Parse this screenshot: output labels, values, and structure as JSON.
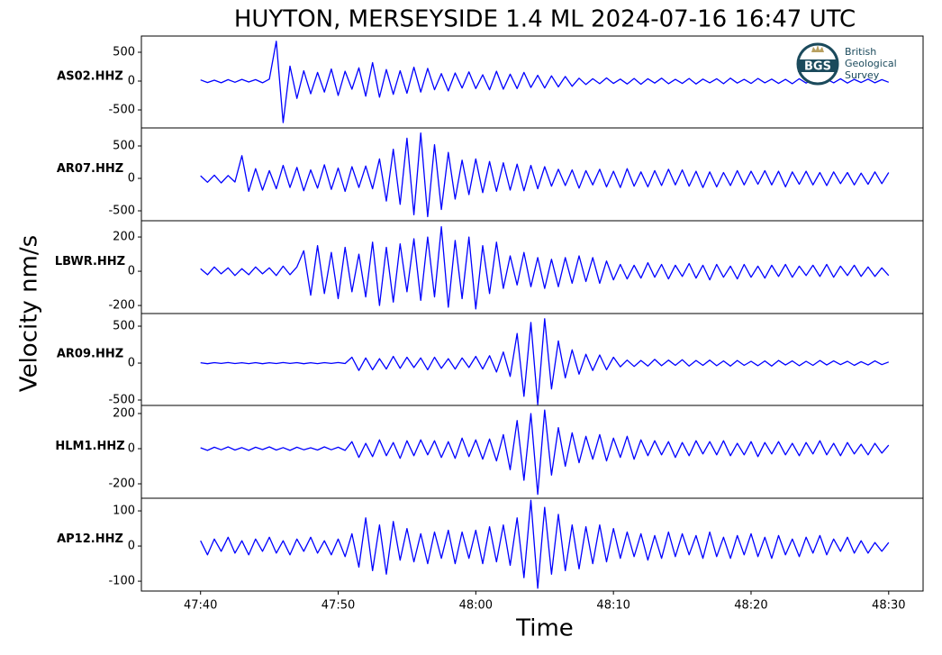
{
  "chart_data": {
    "type": "line",
    "title": "HUYTON, MERSEYSIDE 1.4 ML   2024-07-16 16:47 UTC",
    "xlabel": "Time",
    "ylabel": "Velocity nm/s",
    "logo": {
      "abbr": "BGS",
      "name": [
        "British",
        "Geological",
        "Survey"
      ]
    },
    "xlim": [
      35.7,
      92.5
    ],
    "xticks": [
      {
        "value": 40,
        "label": "47:40"
      },
      {
        "value": 50,
        "label": "47:50"
      },
      {
        "value": 60,
        "label": "48:00"
      },
      {
        "value": 70,
        "label": "48:10"
      },
      {
        "value": 80,
        "label": "48:20"
      },
      {
        "value": 90,
        "label": "48:30"
      }
    ],
    "x": [
      40,
      40.5,
      41,
      41.5,
      42,
      42.5,
      43,
      43.5,
      44,
      44.5,
      45,
      45.5,
      46,
      46.5,
      47,
      47.5,
      48,
      48.5,
      49,
      49.5,
      50,
      50.5,
      51,
      51.5,
      52,
      52.5,
      53,
      53.5,
      54,
      54.5,
      55,
      55.5,
      56,
      56.5,
      57,
      57.5,
      58,
      58.5,
      59,
      59.5,
      60,
      60.5,
      61,
      61.5,
      62,
      62.5,
      63,
      63.5,
      64,
      64.5,
      65,
      65.5,
      66,
      66.5,
      67,
      67.5,
      68,
      68.5,
      69,
      69.5,
      70,
      70.5,
      71,
      71.5,
      72,
      72.5,
      73,
      73.5,
      74,
      74.5,
      75,
      75.5,
      76,
      76.5,
      77,
      77.5,
      78,
      78.5,
      79,
      79.5,
      80,
      80.5,
      81,
      81.5,
      82,
      82.5,
      83,
      83.5,
      84,
      84.5,
      85,
      85.5,
      86,
      86.5,
      87,
      87.5,
      88,
      88.5,
      89,
      89.5,
      90
    ],
    "series": [
      {
        "name": "AS02.HHZ",
        "color": "#0000ff",
        "ylim": [
          -812,
          781
        ],
        "yticks": [
          -500,
          0,
          500
        ],
        "values": [
          20,
          -25,
          15,
          -30,
          25,
          -20,
          30,
          -15,
          25,
          -30,
          35,
          690,
          -720,
          260,
          -300,
          180,
          -220,
          150,
          -190,
          210,
          -250,
          170,
          -140,
          230,
          -260,
          320,
          -280,
          200,
          -230,
          180,
          -210,
          240,
          -190,
          220,
          -150,
          130,
          -170,
          140,
          -120,
          160,
          -130,
          110,
          -150,
          170,
          -140,
          120,
          -130,
          150,
          -110,
          100,
          -120,
          90,
          -100,
          80,
          -90,
          50,
          -60,
          40,
          -45,
          55,
          -40,
          35,
          -50,
          45,
          -55,
          40,
          -35,
          50,
          -45,
          30,
          -40,
          45,
          -50,
          35,
          -30,
          40,
          -45,
          50,
          -35,
          30,
          -40,
          45,
          -30,
          35,
          -40,
          30,
          -45,
          40,
          -35,
          30,
          -40,
          35,
          -30,
          40,
          -35,
          30,
          -25,
          35,
          -30,
          25,
          -20
        ]
      },
      {
        "name": "AR07.HHZ",
        "color": "#0000ff",
        "ylim": [
          -653,
          778
        ],
        "yticks": [
          -500,
          0,
          500
        ],
        "values": [
          40,
          -60,
          50,
          -70,
          45,
          -55,
          350,
          -200,
          150,
          -180,
          120,
          -160,
          200,
          -140,
          170,
          -190,
          130,
          -150,
          210,
          -170,
          160,
          -200,
          180,
          -140,
          190,
          -160,
          300,
          -350,
          450,
          -400,
          620,
          -560,
          700,
          -590,
          520,
          -480,
          400,
          -320,
          280,
          -250,
          300,
          -220,
          260,
          -200,
          240,
          -180,
          220,
          -190,
          200,
          -160,
          180,
          -120,
          140,
          -110,
          130,
          -150,
          120,
          -100,
          140,
          -130,
          110,
          -140,
          150,
          -120,
          100,
          -130,
          120,
          -110,
          140,
          -100,
          130,
          -120,
          110,
          -140,
          100,
          -130,
          90,
          -110,
          120,
          -100,
          110,
          -90,
          120,
          -100,
          110,
          -130,
          100,
          -90,
          110,
          -100,
          90,
          -110,
          100,
          -80,
          90,
          -100,
          80,
          -90,
          100,
          -80,
          90
        ]
      },
      {
        "name": "LBWR.HHZ",
        "color": "#0000ff",
        "ylim": [
          -247,
          295
        ],
        "yticks": [
          -200,
          0,
          200
        ],
        "values": [
          15,
          -20,
          25,
          -15,
          20,
          -25,
          15,
          -20,
          25,
          -15,
          20,
          -25,
          30,
          -20,
          25,
          120,
          -140,
          150,
          -130,
          110,
          -160,
          140,
          -120,
          100,
          -150,
          170,
          -200,
          140,
          -180,
          160,
          -120,
          190,
          -170,
          200,
          -150,
          260,
          -210,
          180,
          -160,
          200,
          -220,
          150,
          -130,
          170,
          -100,
          90,
          -80,
          110,
          -90,
          80,
          -100,
          70,
          -90,
          80,
          -70,
          90,
          -60,
          80,
          -70,
          60,
          -50,
          40,
          -45,
          35,
          -40,
          50,
          -35,
          40,
          -45,
          35,
          -30,
          45,
          -40,
          35,
          -50,
          40,
          -35,
          30,
          -45,
          40,
          -35,
          30,
          -40,
          35,
          -30,
          40,
          -35,
          30,
          -25,
          35,
          -30,
          40,
          -35,
          30,
          -25,
          35,
          -30,
          25,
          -30,
          20,
          -25
        ]
      },
      {
        "name": "AR09.HHZ",
        "color": "#0000ff",
        "ylim": [
          -573,
          671
        ],
        "yticks": [
          -500,
          0,
          500
        ],
        "values": [
          5,
          -8,
          6,
          -5,
          8,
          -6,
          5,
          -7,
          6,
          -8,
          5,
          -6,
          7,
          -5,
          6,
          -8,
          5,
          -7,
          6,
          -5,
          8,
          -6,
          80,
          -100,
          70,
          -90,
          60,
          -80,
          90,
          -70,
          80,
          -60,
          70,
          -90,
          80,
          -70,
          60,
          -80,
          70,
          -60,
          90,
          -80,
          100,
          -120,
          150,
          -180,
          400,
          -450,
          550,
          -560,
          600,
          -350,
          300,
          -200,
          180,
          -150,
          120,
          -100,
          110,
          -90,
          80,
          -50,
          40,
          -45,
          35,
          -40,
          50,
          -35,
          40,
          -30,
          45,
          -40,
          35,
          -30,
          40,
          -35,
          30,
          -40,
          35,
          -30,
          25,
          -35,
          30,
          -40,
          35,
          -25,
          30,
          -35,
          25,
          -30,
          35,
          -25,
          30,
          -20,
          25,
          -30,
          20,
          -25,
          30,
          -20,
          15
        ]
      },
      {
        "name": "HLM1.HHZ",
        "color": "#0000ff",
        "ylim": [
          -282,
          246
        ],
        "yticks": [
          -200,
          0,
          200
        ],
        "values": [
          5,
          -10,
          8,
          -6,
          10,
          -8,
          6,
          -10,
          8,
          -5,
          10,
          -8,
          6,
          -10,
          8,
          -6,
          5,
          -8,
          10,
          -6,
          8,
          -10,
          40,
          -50,
          30,
          -45,
          50,
          -40,
          35,
          -55,
          45,
          -40,
          50,
          -35,
          45,
          -50,
          40,
          -55,
          60,
          -45,
          50,
          -60,
          55,
          -70,
          80,
          -120,
          160,
          -180,
          200,
          -260,
          220,
          -150,
          120,
          -100,
          90,
          -80,
          70,
          -60,
          80,
          -70,
          60,
          -50,
          70,
          -60,
          50,
          -40,
          45,
          -35,
          40,
          -50,
          35,
          -40,
          45,
          -30,
          40,
          -35,
          45,
          -40,
          30,
          -35,
          40,
          -45,
          35,
          -30,
          40,
          -35,
          30,
          -40,
          35,
          -30,
          45,
          -35,
          30,
          -40,
          35,
          -30,
          25,
          -35,
          30,
          -25,
          20
        ]
      },
      {
        "name": "AP12.HHZ",
        "color": "#0000ff",
        "ylim": [
          -128,
          136
        ],
        "yticks": [
          -100,
          0,
          100
        ],
        "values": [
          15,
          -25,
          20,
          -15,
          25,
          -20,
          15,
          -25,
          20,
          -15,
          25,
          -20,
          15,
          -25,
          20,
          -15,
          25,
          -20,
          15,
          -25,
          20,
          -30,
          35,
          -60,
          80,
          -70,
          60,
          -80,
          70,
          -40,
          50,
          -45,
          35,
          -50,
          40,
          -35,
          45,
          -50,
          40,
          -35,
          45,
          -50,
          55,
          -45,
          60,
          -55,
          80,
          -90,
          130,
          -120,
          110,
          -80,
          90,
          -70,
          60,
          -65,
          55,
          -50,
          60,
          -45,
          50,
          -35,
          40,
          -30,
          35,
          -40,
          30,
          -35,
          40,
          -30,
          35,
          -25,
          30,
          -35,
          40,
          -30,
          25,
          -35,
          30,
          -25,
          35,
          -30,
          25,
          -35,
          30,
          -25,
          20,
          -30,
          25,
          -20,
          30,
          -25,
          20,
          -15,
          25,
          -20,
          15,
          -20,
          10,
          -15,
          10
        ]
      }
    ]
  }
}
